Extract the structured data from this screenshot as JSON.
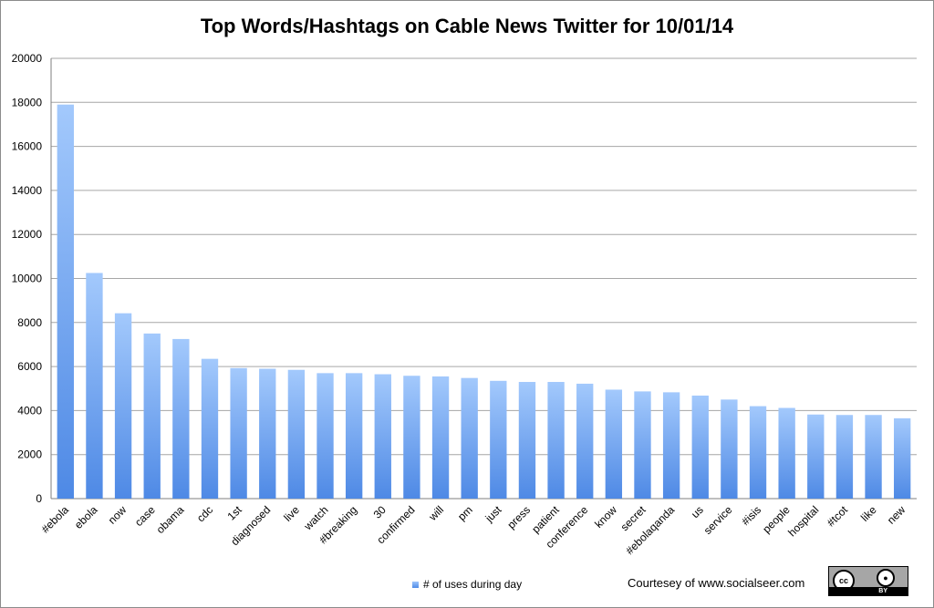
{
  "chart_data": {
    "type": "bar",
    "title": "Top Words/Hashtags on Cable News Twitter for 10/01/14",
    "categories": [
      "#ebola",
      "ebola",
      "now",
      "case",
      "obama",
      "cdc",
      "1st",
      "diagnosed",
      "live",
      "watch",
      "#breaking",
      "30",
      "confirmed",
      "will",
      "pm",
      "just",
      "press",
      "patient",
      "conference",
      "know",
      "secret",
      "#ebolaqanda",
      "us",
      "service",
      "#isis",
      "people",
      "hospital",
      "#tcot",
      "like",
      "new"
    ],
    "series": [
      {
        "name": "# of uses during day",
        "values": [
          17900,
          10250,
          8420,
          7500,
          7250,
          6350,
          5930,
          5900,
          5850,
          5700,
          5700,
          5650,
          5580,
          5550,
          5480,
          5350,
          5300,
          5300,
          5220,
          4950,
          4870,
          4830,
          4680,
          4500,
          4200,
          4120,
          3820,
          3800,
          3800,
          3650
        ]
      }
    ],
    "yticks": [
      0,
      2000,
      4000,
      6000,
      8000,
      10000,
      12000,
      14000,
      16000,
      18000,
      20000
    ],
    "ylim": [
      0,
      20000
    ],
    "grid": true,
    "legend_position": "bottom",
    "colors": {
      "bar_top": "#a3c9fc",
      "bar_bottom": "#4e89e5",
      "grid": "#a6a6a6"
    }
  },
  "footer": {
    "credit": "Courtesey of www.socialseer.com",
    "badge": {
      "cc": "cc",
      "by": "BY"
    }
  }
}
